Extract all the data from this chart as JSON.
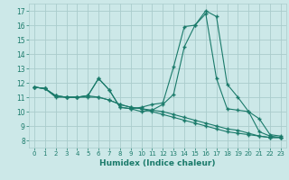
{
  "xlabel": "Humidex (Indice chaleur)",
  "background_color": "#cce8e8",
  "grid_color": "#aacccc",
  "line_color": "#1a7a6a",
  "xlim": [
    -0.5,
    23.5
  ],
  "ylim": [
    7.5,
    17.5
  ],
  "xticks": [
    0,
    1,
    2,
    3,
    4,
    5,
    6,
    7,
    8,
    9,
    10,
    11,
    12,
    13,
    14,
    15,
    16,
    17,
    18,
    19,
    20,
    21,
    22,
    23
  ],
  "yticks": [
    8,
    9,
    10,
    11,
    12,
    13,
    14,
    15,
    16,
    17
  ],
  "series": [
    {
      "x": [
        0,
        1,
        2,
        3,
        4,
        5,
        6,
        7,
        8,
        9,
        10,
        11,
        12,
        13,
        14,
        15,
        16,
        17,
        18,
        19,
        20,
        21,
        22,
        23
      ],
      "y": [
        11.7,
        11.6,
        11.1,
        11.0,
        11.0,
        11.1,
        12.3,
        11.5,
        10.3,
        10.2,
        10.3,
        10.5,
        10.6,
        13.1,
        15.9,
        16.0,
        16.8,
        12.3,
        10.2,
        10.1,
        10.0,
        9.5,
        8.4,
        8.3
      ]
    },
    {
      "x": [
        0,
        1,
        2,
        3,
        4,
        5,
        6,
        7,
        8,
        9,
        10,
        11,
        12,
        13,
        14,
        15,
        16,
        17,
        18,
        19,
        20,
        21,
        22,
        23
      ],
      "y": [
        11.7,
        11.6,
        11.1,
        11.0,
        11.0,
        11.1,
        12.3,
        11.5,
        10.3,
        10.2,
        10.0,
        10.1,
        10.5,
        11.2,
        14.5,
        16.0,
        17.0,
        16.6,
        11.9,
        11.0,
        10.0,
        8.6,
        8.3,
        8.2
      ]
    },
    {
      "x": [
        0,
        1,
        2,
        3,
        4,
        5,
        6,
        7,
        8,
        9,
        10,
        11,
        12,
        13,
        14,
        15,
        16,
        17,
        18,
        19,
        20,
        21,
        22,
        23
      ],
      "y": [
        11.7,
        11.6,
        11.0,
        11.0,
        11.0,
        11.0,
        11.0,
        10.8,
        10.5,
        10.3,
        10.2,
        10.0,
        9.8,
        9.6,
        9.4,
        9.2,
        9.0,
        8.8,
        8.6,
        8.5,
        8.4,
        8.3,
        8.2,
        8.2
      ]
    },
    {
      "x": [
        0,
        1,
        2,
        3,
        4,
        5,
        6,
        7,
        8,
        9,
        10,
        11,
        12,
        13,
        14,
        15,
        16,
        17,
        18,
        19,
        20,
        21,
        22,
        23
      ],
      "y": [
        11.7,
        11.6,
        11.1,
        11.0,
        11.0,
        11.1,
        11.0,
        10.8,
        10.5,
        10.3,
        10.2,
        10.1,
        10.0,
        9.8,
        9.6,
        9.4,
        9.2,
        9.0,
        8.8,
        8.7,
        8.5,
        8.3,
        8.2,
        8.2
      ]
    }
  ]
}
